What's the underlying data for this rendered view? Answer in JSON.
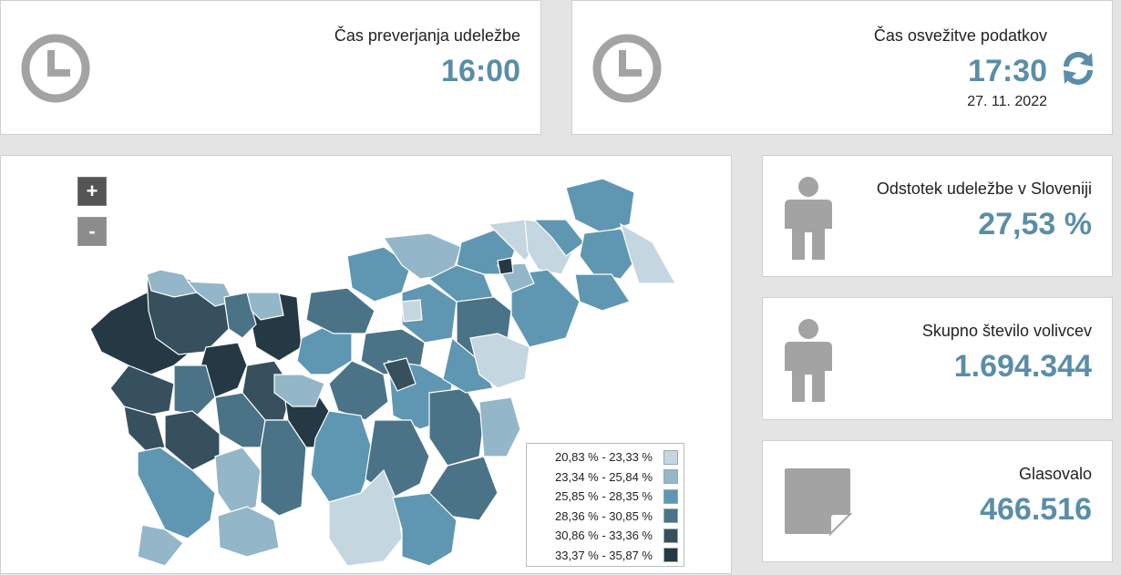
{
  "cards": {
    "check_time": {
      "label": "Čas preverjanja udeležbe",
      "value": "16:00",
      "icon": "clock-icon"
    },
    "refresh_time": {
      "label": "Čas osvežitve podatkov",
      "value": "17:30",
      "date": "27. 11. 2022",
      "icon": "clock-icon",
      "action_icon": "refresh-icon"
    },
    "turnout": {
      "label": "Odstotek udeležbe v Sloveniji",
      "value": "27,53 %",
      "icon": "person-icon"
    },
    "voters": {
      "label": "Skupno število volivcev",
      "value": "1.694.344",
      "icon": "person-icon"
    },
    "voted": {
      "label": "Glasovalo",
      "value": "466.516",
      "icon": "note-icon"
    }
  },
  "map": {
    "zoom_in": "+",
    "zoom_out": "-",
    "legend": [
      {
        "label": "20,83 % - 23,33 %",
        "color": "#c4d6df"
      },
      {
        "label": "23,34 % - 25,84 %",
        "color": "#93b6c8"
      },
      {
        "label": "25,85 % - 28,35 %",
        "color": "#5f97b2"
      },
      {
        "label": "28,36 % - 30,85 %",
        "color": "#4a7388"
      },
      {
        "label": "30,86 % - 33,36 %",
        "color": "#36505e"
      },
      {
        "label": "33,37 % - 35,87 %",
        "color": "#243943"
      }
    ]
  },
  "colors": {
    "accent": "#5a8ea8",
    "icon_gray": "#a3a3a3"
  }
}
